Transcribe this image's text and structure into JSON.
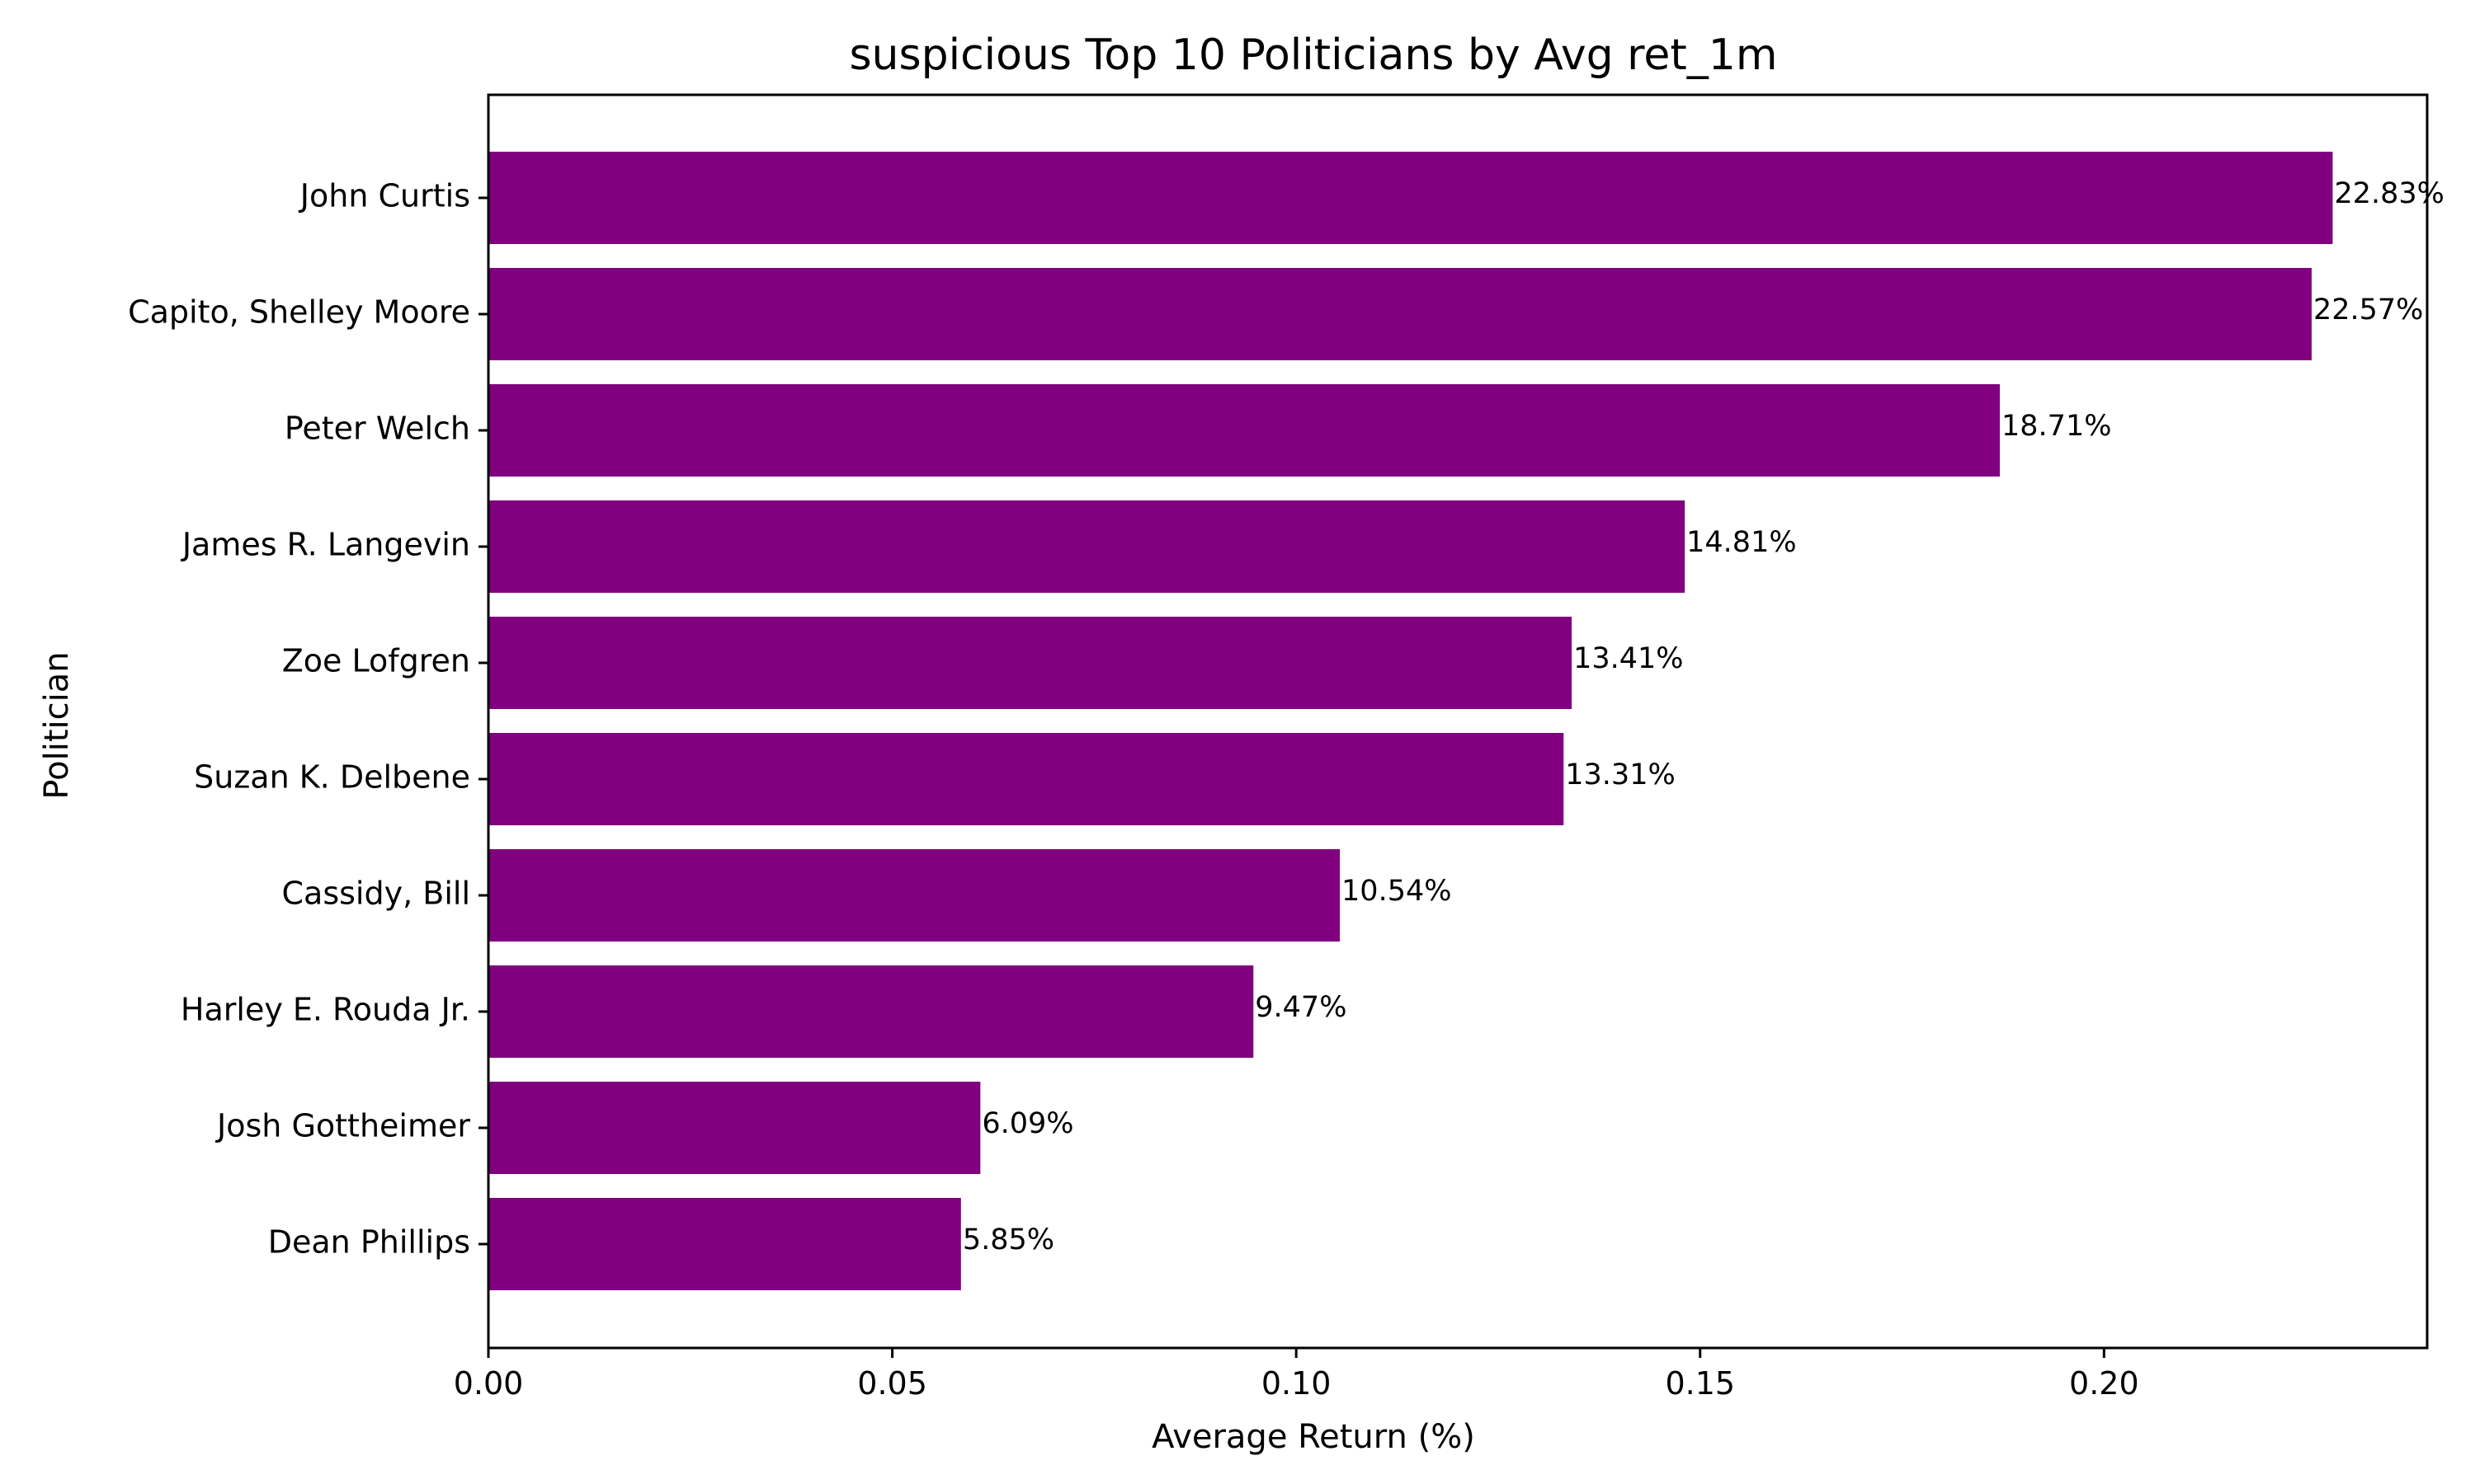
{
  "chart_data": {
    "type": "bar",
    "orientation": "horizontal",
    "title": "suspicious Top 10 Politicians by Avg ret_1m",
    "xlabel": "Average Return (%)",
    "ylabel": "Politician",
    "categories": [
      "John Curtis",
      "Capito, Shelley Moore",
      "Peter Welch",
      "James R. Langevin",
      "Zoe Lofgren",
      "Suzan K. Delbene",
      "Cassidy, Bill",
      "Harley E. Rouda Jr.",
      "Josh Gottheimer",
      "Dean Phillips"
    ],
    "values": [
      0.2283,
      0.2257,
      0.1871,
      0.1481,
      0.1341,
      0.1331,
      0.1054,
      0.0947,
      0.0609,
      0.0585
    ],
    "data_labels": [
      "22.83%",
      "22.57%",
      "18.71%",
      "14.81%",
      "13.41%",
      "13.31%",
      "10.54%",
      "9.47%",
      "6.09%",
      "5.85%"
    ],
    "xlim": [
      0,
      0.24
    ],
    "xticks": [
      0.0,
      0.05,
      0.1,
      0.15,
      0.2
    ],
    "xtick_labels": [
      "0.00",
      "0.05",
      "0.10",
      "0.15",
      "0.20"
    ],
    "bar_color": "#800080",
    "grid": false,
    "legend": "none"
  }
}
